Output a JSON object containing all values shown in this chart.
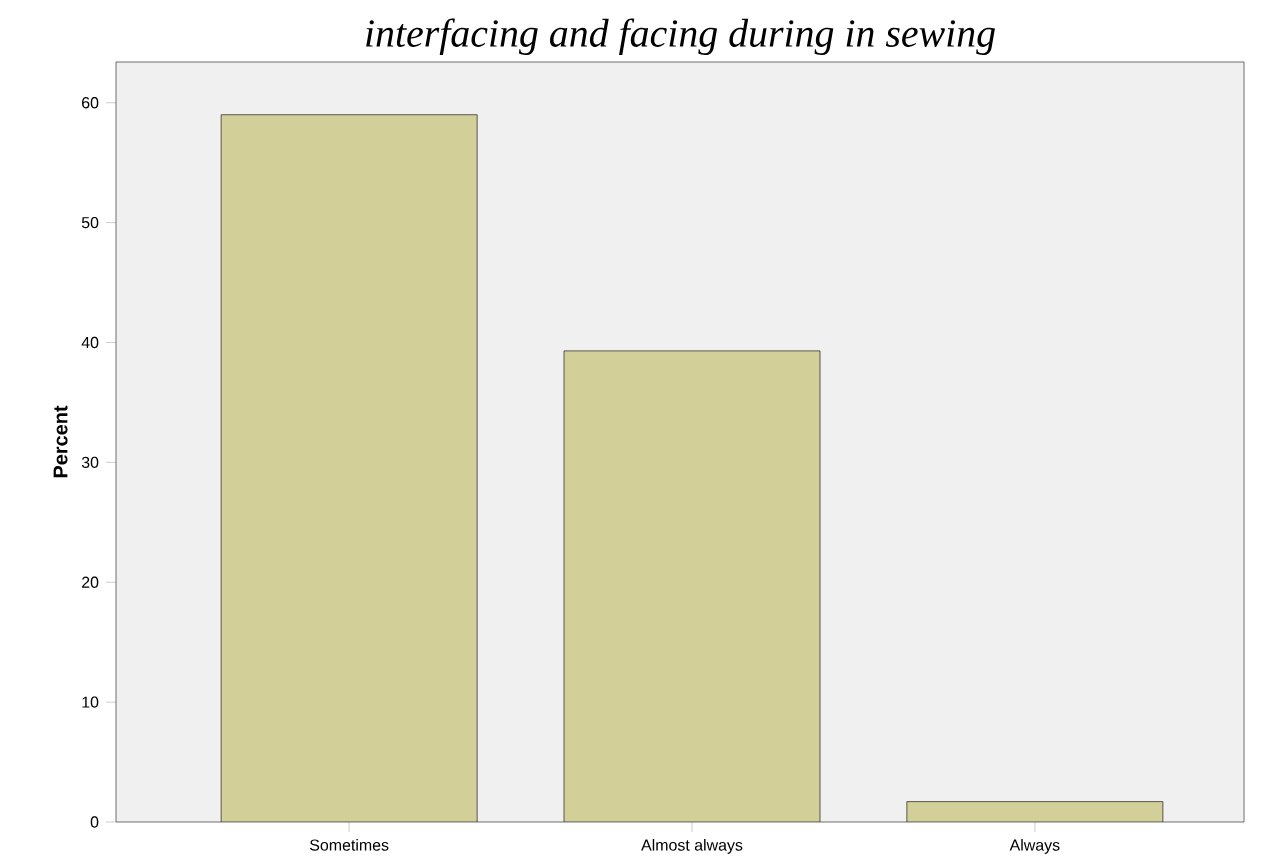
{
  "chart_data": {
    "type": "bar",
    "title": "interfacing and facing during in sewing",
    "ylabel": "Percent",
    "categories": [
      "Sometimes",
      "Almost always",
      "Always"
    ],
    "values": [
      59.0,
      39.3,
      1.7
    ],
    "color": "#d3cf98",
    "ylim": [
      0,
      63.4
    ],
    "yticks": [
      0,
      10,
      20,
      30,
      40,
      50,
      60
    ],
    "grid": false
  }
}
